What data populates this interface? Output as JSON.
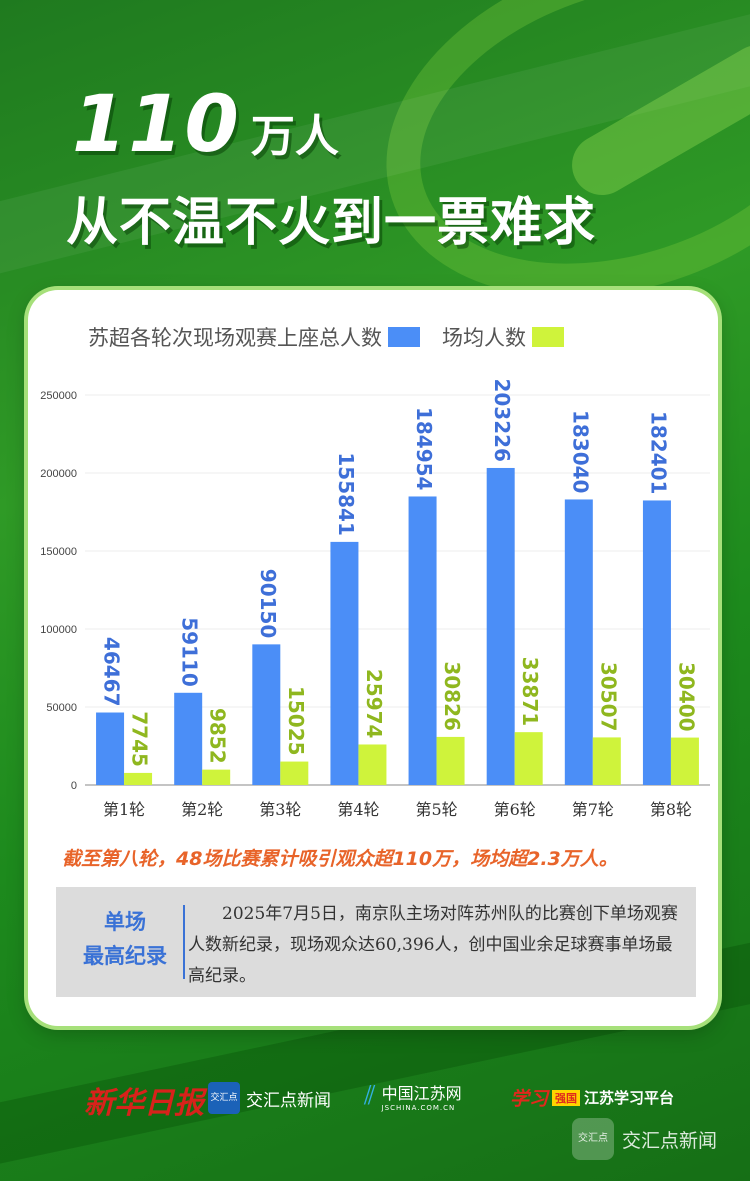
{
  "hero": {
    "number": "110",
    "unit": "万人",
    "subtitle": "从不温不火到一票难求"
  },
  "legend": {
    "series1": "苏超各轮次现场观赛上座总人数",
    "series2": "场均人数"
  },
  "chart_data": {
    "type": "bar",
    "categories": [
      "第1轮",
      "第2轮",
      "第3轮",
      "第4轮",
      "第5轮",
      "第6轮",
      "第7轮",
      "第8轮"
    ],
    "series": [
      {
        "name": "苏超各轮次现场观赛上座总人数",
        "values": [
          46467,
          59110,
          90150,
          155841,
          184954,
          203226,
          183040,
          182401
        ],
        "color": "#4b8ef7"
      },
      {
        "name": "场均人数",
        "values": [
          7745,
          9852,
          15025,
          25974,
          30826,
          33871,
          30507,
          30400
        ],
        "color": "#cff33b"
      }
    ],
    "yticks": [
      0,
      50000,
      100000,
      150000,
      200000,
      250000
    ],
    "ylim": [
      0,
      250000
    ],
    "grid": true,
    "legend_position": "top",
    "title": "",
    "xlabel": "",
    "ylabel": ""
  },
  "summary": "截至第八轮，48场比赛累计吸引观众超110万，场均超2.3万人。",
  "record": {
    "title_line1": "单场",
    "title_line2": "最高纪录",
    "text": "2025年7月5日，南京队主场对阵苏州队的比赛创下单场观赛人数新纪录，现场观众达60,396人，创中国业余足球赛事单场最高纪录。"
  },
  "logos": {
    "xinhua": "新华日报",
    "jhd_mark": "交汇点",
    "jhd_name": "交汇点新闻",
    "js_name": "中国江苏网",
    "js_sub": "JSCHINA.COM.CN",
    "xx_red": "学习",
    "xx_tag": "强国",
    "xx_name": "江苏学习平台"
  },
  "watermark": {
    "mark": "交汇点",
    "text": "交汇点新闻"
  },
  "colors": {
    "accent_blue": "#4b8ef7",
    "accent_green": "#cff33b",
    "summary_orange": "#e8642a",
    "record_blue": "#3a72d6"
  }
}
